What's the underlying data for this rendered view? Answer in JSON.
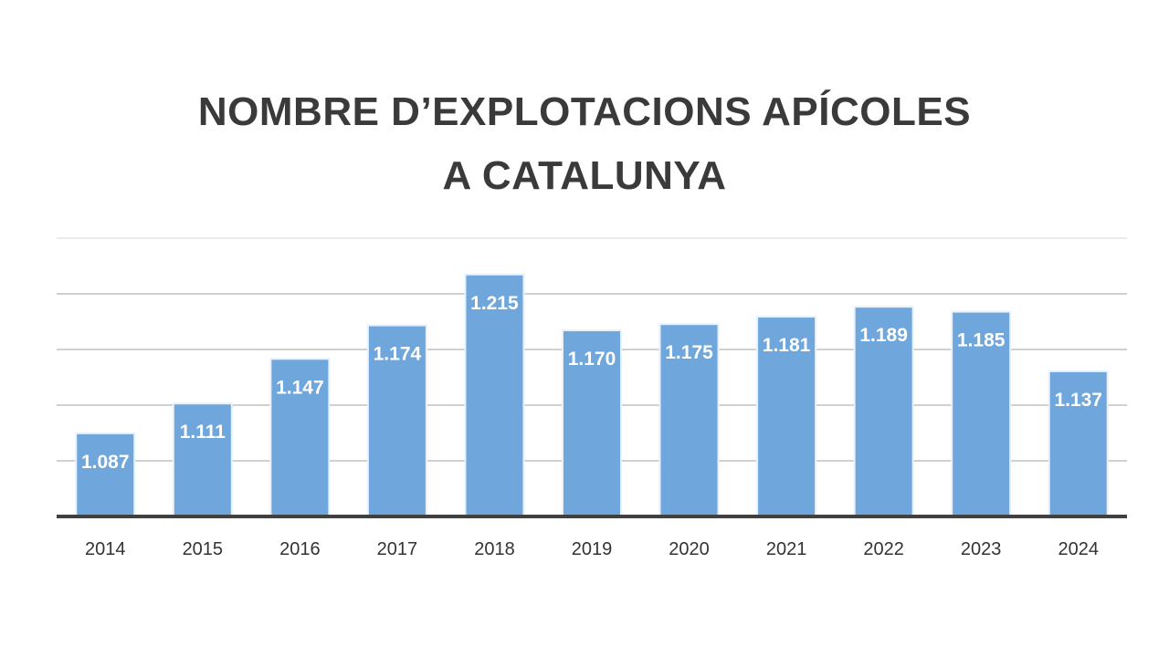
{
  "header": {
    "title_line1": "NOMBRE D’EXPLOTACIONS APÍCOLES",
    "title_line2": "A CATALUNYA"
  },
  "colors": {
    "bar": "#6fa7dc",
    "bar_border": "#e8f1fb",
    "gridline": "#d0d0d0",
    "baseline": "#404040",
    "title": "#3a3a3a"
  },
  "chart_data": {
    "type": "bar",
    "title": "NOMBRE D’EXPLOTACIONS APÍCOLES A CATALUNYA",
    "categories": [
      "2014",
      "2015",
      "2016",
      "2017",
      "2018",
      "2019",
      "2020",
      "2021",
      "2022",
      "2023",
      "2024"
    ],
    "values": [
      1087,
      1111,
      1147,
      1174,
      1215,
      1170,
      1175,
      1181,
      1189,
      1185,
      1137
    ],
    "labels": [
      "1.087",
      "1.111",
      "1.147",
      "1.174",
      "1.215",
      "1.170",
      "1.175",
      "1.181",
      "1.189",
      "1.185",
      "1.137"
    ],
    "xlabel": "",
    "ylabel": "",
    "ylim": [
      1020,
      1245
    ],
    "grid": true,
    "legend": "none"
  }
}
